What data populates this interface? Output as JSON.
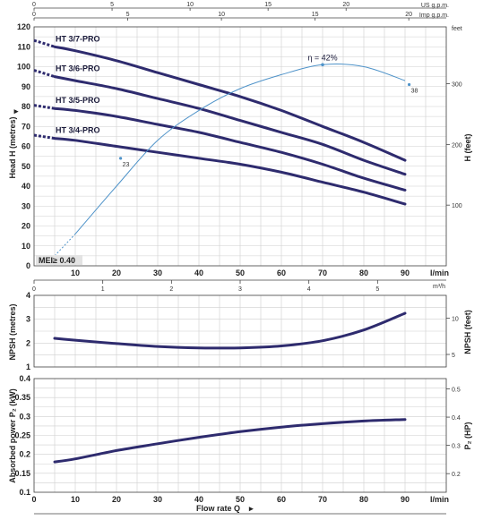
{
  "chart_data": [
    {
      "type": "line",
      "name": "head",
      "ylabel": "Head H  (metres)",
      "ylabel_right": "H  (feet)",
      "xlabel_unit": "l/min",
      "xlim": [
        0,
        100
      ],
      "ylim": [
        0,
        120
      ],
      "x_ticks": [
        10,
        20,
        30,
        40,
        50,
        60,
        70,
        80,
        90
      ],
      "y_ticks": [
        0,
        10,
        20,
        30,
        40,
        50,
        60,
        70,
        80,
        90,
        100,
        110,
        120
      ],
      "y_right_ticks": [
        100,
        200,
        300
      ],
      "y_right_unit": "feet",
      "top_axes": [
        {
          "unit": "US g.p.m.",
          "ticks": [
            0,
            5,
            10,
            15,
            20
          ],
          "per_lpm": 0.2642
        },
        {
          "unit": "Imp g.p.m.",
          "ticks": [
            0,
            5,
            10,
            15,
            20
          ],
          "per_lpm": 0.22
        }
      ],
      "m3h_axis": {
        "unit": "m³/h",
        "ticks": [
          0,
          1,
          2,
          3,
          4,
          5
        ]
      },
      "series": [
        {
          "name": "HT 3/7-PRO",
          "x": [
            5,
            10,
            20,
            30,
            40,
            50,
            60,
            70,
            80,
            90
          ],
          "values": [
            110,
            108,
            103,
            97,
            91,
            85,
            78,
            70,
            62,
            53
          ]
        },
        {
          "name": "HT 3/6-PRO",
          "x": [
            5,
            10,
            20,
            30,
            40,
            50,
            60,
            70,
            80,
            90
          ],
          "values": [
            95,
            93,
            89,
            84,
            79,
            73,
            67,
            61,
            53,
            46
          ]
        },
        {
          "name": "HT 3/5-PRO",
          "x": [
            5,
            10,
            20,
            30,
            40,
            50,
            60,
            70,
            80,
            90
          ],
          "values": [
            79,
            78,
            75,
            71,
            67,
            62,
            57,
            51,
            44,
            38
          ]
        },
        {
          "name": "HT 3/4-PRO",
          "x": [
            5,
            10,
            20,
            30,
            40,
            50,
            60,
            70,
            80,
            90
          ],
          "values": [
            64,
            63,
            60,
            57,
            54,
            51,
            47,
            42,
            37,
            31
          ]
        }
      ],
      "efficiency": {
        "label": "η = 42%",
        "x": [
          5,
          10,
          20,
          30,
          40,
          50,
          60,
          70,
          80,
          90
        ],
        "values": [
          5,
          16,
          40,
          63,
          78,
          89,
          96,
          101,
          100,
          93
        ],
        "point_labels": [
          {
            "x": 21,
            "y": 54,
            "text": "23"
          },
          {
            "x": 91,
            "y": 91,
            "text": "38"
          }
        ]
      },
      "mei_label": "MEI≥ 0.40"
    },
    {
      "type": "line",
      "name": "npsh",
      "ylabel": "NPSH  (metres)",
      "ylabel_right": "NPSH  (feet)",
      "xlim": [
        0,
        100
      ],
      "ylim": [
        1,
        4
      ],
      "y_ticks": [
        1,
        2,
        3,
        4
      ],
      "y_right_ticks": [
        5,
        10
      ],
      "series": [
        {
          "name": "",
          "x": [
            5,
            10,
            20,
            30,
            40,
            50,
            60,
            70,
            80,
            90
          ],
          "values": [
            2.2,
            2.12,
            1.98,
            1.86,
            1.8,
            1.8,
            1.88,
            2.1,
            2.55,
            3.25
          ]
        }
      ]
    },
    {
      "type": "line",
      "name": "power",
      "ylabel": "Absorbed power  P₂  (kW)",
      "ylabel_right": "P₂  (HP)",
      "xlabel": "Flow rate  Q",
      "xlabel_unit": "l/min",
      "xlim": [
        0,
        100
      ],
      "ylim": [
        0.1,
        0.4
      ],
      "x_ticks": [
        0,
        10,
        20,
        30,
        40,
        50,
        60,
        70,
        80,
        90
      ],
      "y_ticks": [
        0.1,
        0.15,
        0.2,
        0.25,
        0.3,
        0.35,
        0.4
      ],
      "y_right_ticks": [
        0.2,
        0.3,
        0.4,
        0.5
      ],
      "series": [
        {
          "name": "",
          "x": [
            5,
            10,
            20,
            30,
            40,
            50,
            60,
            70,
            80,
            90
          ],
          "values": [
            0.18,
            0.188,
            0.21,
            0.228,
            0.245,
            0.26,
            0.272,
            0.281,
            0.288,
            0.292
          ]
        }
      ]
    }
  ],
  "colors": {
    "curve": "#2e2b6e",
    "efficiency": "#4f93c9",
    "grid": "#cfcfcf",
    "mei_box": "#e3e3e3"
  }
}
